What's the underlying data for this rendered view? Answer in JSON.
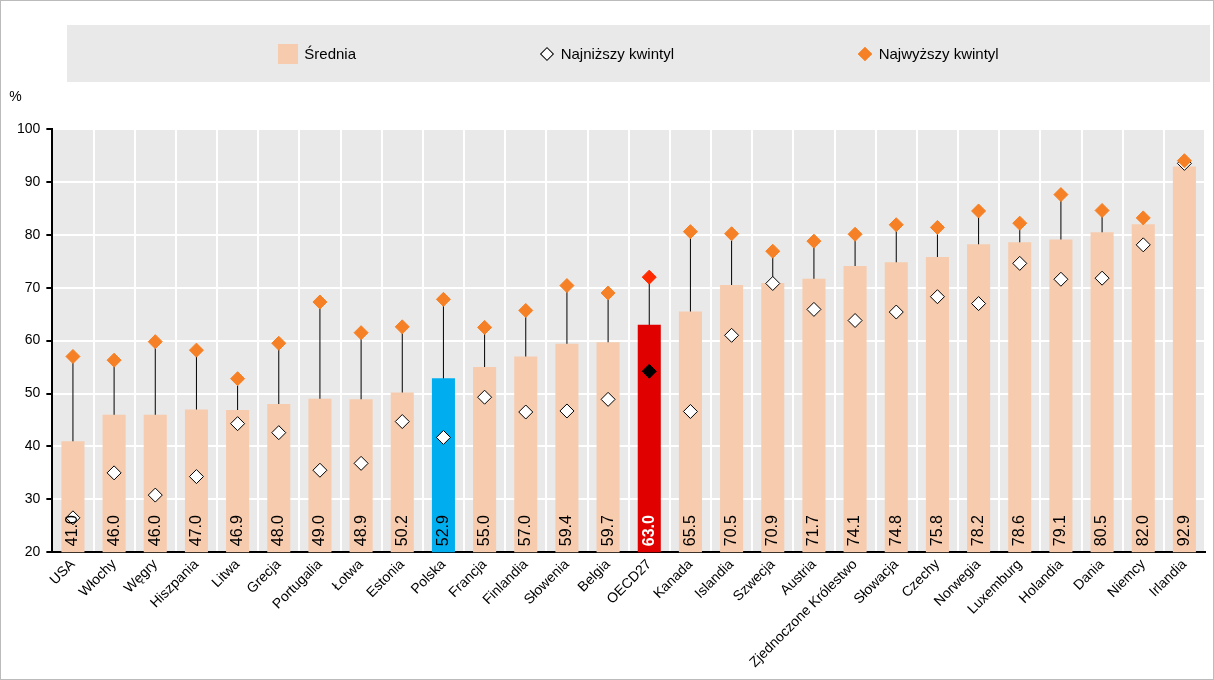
{
  "chart_data": {
    "type": "bar",
    "ylabel": "%",
    "categories": [
      "USA",
      "Włochy",
      "Węgry",
      "Hiszpania",
      "Litwa",
      "Grecja",
      "Portugalia",
      "Łotwa",
      "Estonia",
      "Polska",
      "Francja",
      "Finlandia",
      "Słowenia",
      "Belgia",
      "OECD27",
      "Kanada",
      "Islandia",
      "Szwecja",
      "Austria",
      "Zjednoczone Królestwo",
      "Słowacja",
      "Czechy",
      "Norwegia",
      "Luxemburg",
      "Holandia",
      "Dania",
      "Niemcy",
      "Irlandia"
    ],
    "ylim": [
      20,
      100
    ],
    "yticks": [
      20,
      30,
      40,
      50,
      60,
      70,
      80,
      90,
      100
    ],
    "grid": true,
    "legend": "top",
    "marker": "diamond",
    "series": [
      {
        "name": "Średnia",
        "color": "#f7cbad",
        "colors": [
          "#f7cbad",
          "#f7cbad",
          "#f7cbad",
          "#f7cbad",
          "#f7cbad",
          "#f7cbad",
          "#f7cbad",
          "#f7cbad",
          "#f7cbad",
          "#00aeef",
          "#f7cbad",
          "#f7cbad",
          "#f7cbad",
          "#f7cbad",
          "#e00000",
          "#f7cbad",
          "#f7cbad",
          "#f7cbad",
          "#f7cbad",
          "#f7cbad",
          "#f7cbad",
          "#f7cbad",
          "#f7cbad",
          "#f7cbad",
          "#f7cbad",
          "#f7cbad",
          "#f7cbad",
          "#f7cbad"
        ],
        "values": [
          41.0,
          46.0,
          46.0,
          47.0,
          46.9,
          48.0,
          49.0,
          48.9,
          50.2,
          52.9,
          55.0,
          57.0,
          59.4,
          59.7,
          63.0,
          65.5,
          70.5,
          70.9,
          71.7,
          74.1,
          74.8,
          75.8,
          78.2,
          78.6,
          79.1,
          80.5,
          82.0,
          92.9
        ],
        "value_labels": [
          "41.0",
          "46.0",
          "46.0",
          "47.0",
          "46.9",
          "48.0",
          "49.0",
          "48.9",
          "50.2",
          "52.9",
          "55.0",
          "57.0",
          "59.4",
          "59.7",
          "63.0",
          "65.5",
          "70.5",
          "70.9",
          "71.7",
          "74.1",
          "74.8",
          "75.8",
          "78.2",
          "78.6",
          "79.1",
          "80.5",
          "82.0",
          "92.9"
        ]
      },
      {
        "name": "Najniższy kwintyl",
        "type": "scatter",
        "color": "#ffffff",
        "colors": [
          "#ffffff",
          "#ffffff",
          "#ffffff",
          "#ffffff",
          "#ffffff",
          "#ffffff",
          "#ffffff",
          "#ffffff",
          "#ffffff",
          "#ffffff",
          "#ffffff",
          "#ffffff",
          "#ffffff",
          "#ffffff",
          "#000000",
          "#ffffff",
          "#ffffff",
          "#ffffff",
          "#ffffff",
          "#ffffff",
          "#ffffff",
          "#ffffff",
          "#ffffff",
          "#ffffff",
          "#ffffff",
          "#ffffff",
          "#ffffff",
          "#ffffff"
        ],
        "values": [
          26.5,
          35.0,
          30.8,
          34.3,
          44.3,
          42.6,
          35.5,
          36.8,
          44.7,
          41.7,
          49.3,
          46.5,
          46.7,
          48.9,
          54.2,
          46.6,
          61.0,
          70.8,
          65.9,
          63.8,
          65.4,
          68.3,
          67.0,
          74.6,
          71.6,
          71.8,
          78.1,
          93.5
        ]
      },
      {
        "name": "Najwyższy kwintyl",
        "type": "scatter",
        "color": "#f58025",
        "colors": [
          "#f58025",
          "#f58025",
          "#f58025",
          "#f58025",
          "#f58025",
          "#f58025",
          "#f58025",
          "#f58025",
          "#f58025",
          "#f58025",
          "#f58025",
          "#f58025",
          "#f58025",
          "#f58025",
          "#ff2a00",
          "#f58025",
          "#f58025",
          "#f58025",
          "#f58025",
          "#f58025",
          "#f58025",
          "#f58025",
          "#f58025",
          "#f58025",
          "#f58025",
          "#f58025",
          "#f58025",
          "#f58025"
        ],
        "values": [
          57.0,
          56.3,
          59.8,
          58.2,
          52.8,
          59.5,
          67.3,
          61.5,
          62.6,
          67.8,
          62.5,
          65.7,
          70.4,
          69.0,
          72.0,
          80.6,
          80.2,
          76.9,
          78.8,
          80.1,
          81.9,
          81.4,
          84.5,
          82.2,
          87.6,
          84.6,
          83.2,
          94.0
        ]
      }
    ]
  }
}
